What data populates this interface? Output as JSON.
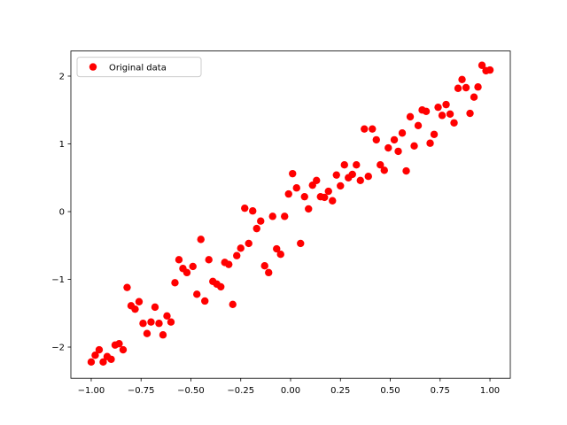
{
  "chart_data": {
    "type": "scatter",
    "xlim": [
      -1.102,
      1.102
    ],
    "ylim": [
      -2.46,
      2.371
    ],
    "xticks": [
      {
        "value": -1,
        "label": "−1.00"
      },
      {
        "value": -0.75,
        "label": "−0.75"
      },
      {
        "value": -0.5,
        "label": "−0.50"
      },
      {
        "value": -0.25,
        "label": "−0.25"
      },
      {
        "value": 0,
        "label": "0.00"
      },
      {
        "value": 0.25,
        "label": "0.25"
      },
      {
        "value": 0.5,
        "label": "0.50"
      },
      {
        "value": 0.75,
        "label": "0.75"
      },
      {
        "value": 1,
        "label": "1.00"
      }
    ],
    "yticks": [
      {
        "value": -2,
        "label": "−2"
      },
      {
        "value": -1,
        "label": "−1"
      },
      0,
      1,
      2
    ],
    "legend": "upper left",
    "grid": false,
    "series": [
      {
        "name": "Original data",
        "color": "#ff0000",
        "x": [
          -1.0,
          -0.98,
          -0.96,
          -0.94,
          -0.92,
          -0.9,
          -0.88,
          -0.86,
          -0.84,
          -0.82,
          -0.8,
          -0.78,
          -0.76,
          -0.74,
          -0.72,
          -0.7,
          -0.68,
          -0.66,
          -0.64,
          -0.62,
          -0.6,
          -0.58,
          -0.56,
          -0.54,
          -0.52,
          -0.49,
          -0.47,
          -0.45,
          -0.43,
          -0.41,
          -0.39,
          -0.37,
          -0.35,
          -0.33,
          -0.31,
          -0.29,
          -0.27,
          -0.25,
          -0.23,
          -0.21,
          -0.19,
          -0.17,
          -0.15,
          -0.13,
          -0.11,
          -0.09,
          -0.07,
          -0.05,
          -0.03,
          -0.01,
          0.01,
          0.03,
          0.05,
          0.07,
          0.09,
          0.11,
          0.13,
          0.15,
          0.17,
          0.19,
          0.21,
          0.23,
          0.25,
          0.27,
          0.29,
          0.31,
          0.33,
          0.35,
          0.37,
          0.39,
          0.41,
          0.43,
          0.45,
          0.47,
          0.49,
          0.52,
          0.54,
          0.56,
          0.58,
          0.6,
          0.62,
          0.64,
          0.66,
          0.68,
          0.7,
          0.72,
          0.74,
          0.76,
          0.78,
          0.8,
          0.82,
          0.84,
          0.86,
          0.88,
          0.9,
          0.92,
          0.94,
          0.96,
          0.98,
          1.0
        ],
        "values": [
          -2.22,
          -2.12,
          -2.04,
          -2.22,
          -2.14,
          -2.18,
          -1.97,
          -1.95,
          -2.04,
          -1.12,
          -1.39,
          -1.44,
          -1.33,
          -1.65,
          -1.8,
          -1.63,
          -1.41,
          -1.65,
          -1.82,
          -1.54,
          -1.63,
          -1.05,
          -0.71,
          -0.84,
          -0.9,
          -0.81,
          -1.22,
          -0.41,
          -1.32,
          -0.71,
          -1.03,
          -1.07,
          -1.11,
          -0.75,
          -0.78,
          -1.37,
          -0.65,
          -0.54,
          0.05,
          -0.47,
          0.01,
          -0.25,
          -0.14,
          -0.8,
          -0.9,
          -0.07,
          -0.55,
          -0.63,
          -0.07,
          0.26,
          0.56,
          0.35,
          -0.47,
          0.22,
          0.04,
          0.39,
          0.46,
          0.22,
          0.21,
          0.3,
          0.16,
          0.54,
          0.38,
          0.69,
          0.5,
          0.55,
          0.69,
          0.46,
          1.22,
          0.52,
          1.22,
          1.06,
          0.69,
          0.61,
          0.94,
          1.06,
          0.89,
          1.16,
          0.6,
          1.4,
          0.97,
          1.27,
          1.5,
          1.48,
          1.01,
          1.14,
          1.54,
          1.42,
          1.58,
          1.44,
          1.31,
          1.82,
          1.95,
          1.83,
          1.45,
          1.69,
          1.84,
          2.16,
          2.08,
          2.09
        ]
      }
    ]
  }
}
